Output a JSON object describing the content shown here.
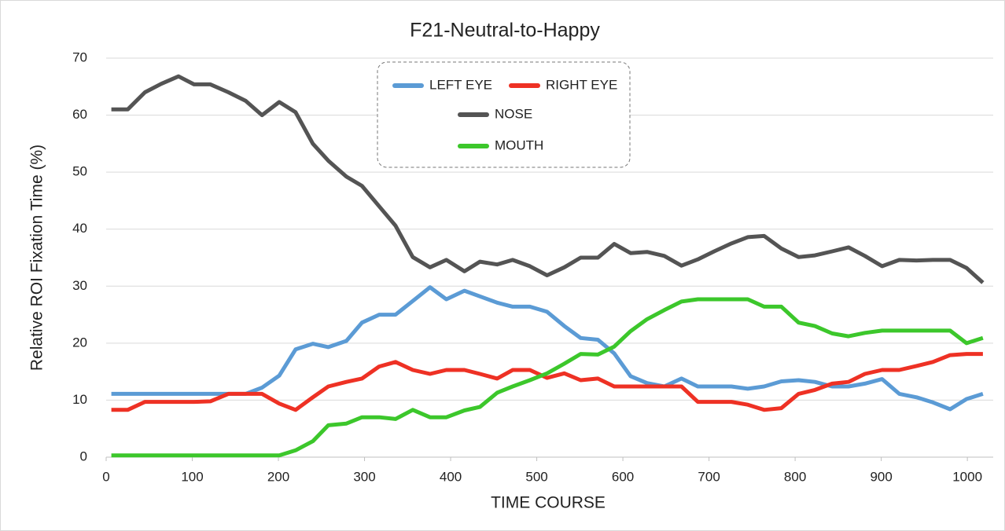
{
  "chart_data": {
    "type": "line",
    "title": "F21-Neutral-to-Happy",
    "x_label": "TIME  COURSE",
    "y_label": "Relative  ROI  Fixation  Time  (%)",
    "x": [
      6,
      25,
      45,
      64,
      84,
      102,
      121,
      142,
      162,
      181,
      201,
      220,
      240,
      258,
      279,
      297,
      317,
      336,
      356,
      376,
      395,
      416,
      434,
      454,
      472,
      492,
      512,
      532,
      551,
      571,
      590,
      609,
      628,
      648,
      668,
      687,
      706,
      726,
      745,
      764,
      784,
      804,
      823,
      843,
      862,
      881,
      901,
      921,
      941,
      960,
      980,
      999,
      1018
    ],
    "series": [
      {
        "name": "LEFT EYE",
        "color": "#5b9bd5",
        "values": [
          11.1,
          11.1,
          11.1,
          11.1,
          11.1,
          11.1,
          11.1,
          11.1,
          11.1,
          12.2,
          14.3,
          18.9,
          19.9,
          19.3,
          20.4,
          23.6,
          25,
          25,
          27.4,
          29.8,
          27.7,
          29.2,
          28.2,
          27.1,
          26.4,
          26.4,
          25.5,
          23,
          20.9,
          20.6,
          18.2,
          14.2,
          13,
          12.4,
          13.8,
          12.4,
          12.4,
          12.4,
          12,
          12.4,
          13.3,
          13.5,
          13.2,
          12.4,
          12.4,
          12.9,
          13.7,
          11.1,
          10.5,
          9.6,
          8.4,
          10.2,
          11.1
        ]
      },
      {
        "name": "RIGHT EYE",
        "color": "#ee3124",
        "values": [
          8.3,
          8.3,
          9.7,
          9.7,
          9.7,
          9.7,
          9.8,
          11.1,
          11.1,
          11.1,
          9.4,
          8.3,
          10.5,
          12.4,
          13.2,
          13.8,
          15.9,
          16.7,
          15.3,
          14.6,
          15.3,
          15.3,
          14.6,
          13.8,
          15.3,
          15.3,
          13.9,
          14.7,
          13.5,
          13.8,
          12.4,
          12.4,
          12.4,
          12.4,
          12.4,
          9.7,
          9.7,
          9.7,
          9.2,
          8.3,
          8.6,
          11.1,
          11.8,
          12.9,
          13.2,
          14.6,
          15.3,
          15.3,
          16,
          16.7,
          17.9,
          18.1,
          18.1
        ]
      },
      {
        "name": "NOSE",
        "color": "#545454",
        "values": [
          61,
          61,
          64,
          65.5,
          66.8,
          65.4,
          65.4,
          64,
          62.5,
          60,
          62.3,
          60.5,
          55,
          52,
          49.2,
          47.6,
          44,
          40.6,
          35.1,
          33.3,
          34.6,
          32.6,
          34.3,
          33.8,
          34.6,
          33.5,
          31.9,
          33.3,
          35,
          35,
          37.4,
          35.8,
          36,
          35.3,
          33.6,
          34.7,
          36.1,
          37.5,
          38.6,
          38.8,
          36.6,
          35.1,
          35.4,
          36.1,
          36.8,
          35.3,
          33.5,
          34.6,
          34.5,
          34.6,
          34.6,
          33.2,
          30.6
        ]
      },
      {
        "name": "MOUTH",
        "color": "#3cc72b",
        "values": [
          0.3,
          0.3,
          0.3,
          0.3,
          0.3,
          0.3,
          0.3,
          0.3,
          0.3,
          0.3,
          0.3,
          1.2,
          2.8,
          5.6,
          5.9,
          7,
          7,
          6.7,
          8.3,
          7,
          7,
          8.2,
          8.8,
          11.3,
          12.4,
          13.5,
          14.7,
          16.4,
          18.1,
          18,
          19.4,
          22.1,
          24.2,
          25.8,
          27.3,
          27.7,
          27.7,
          27.7,
          27.7,
          26.4,
          26.4,
          23.6,
          23,
          21.7,
          21.2,
          21.8,
          22.2,
          22.2,
          22.2,
          22.2,
          22.2,
          20,
          20.9
        ]
      }
    ],
    "xlim": [
      0,
      1030
    ],
    "xticks": [
      0,
      100,
      200,
      300,
      400,
      500,
      600,
      700,
      800,
      900,
      1000
    ],
    "ylim": [
      0,
      70
    ],
    "yticks": [
      0,
      10,
      20,
      30,
      40,
      50,
      60,
      70
    ],
    "grid": true
  }
}
